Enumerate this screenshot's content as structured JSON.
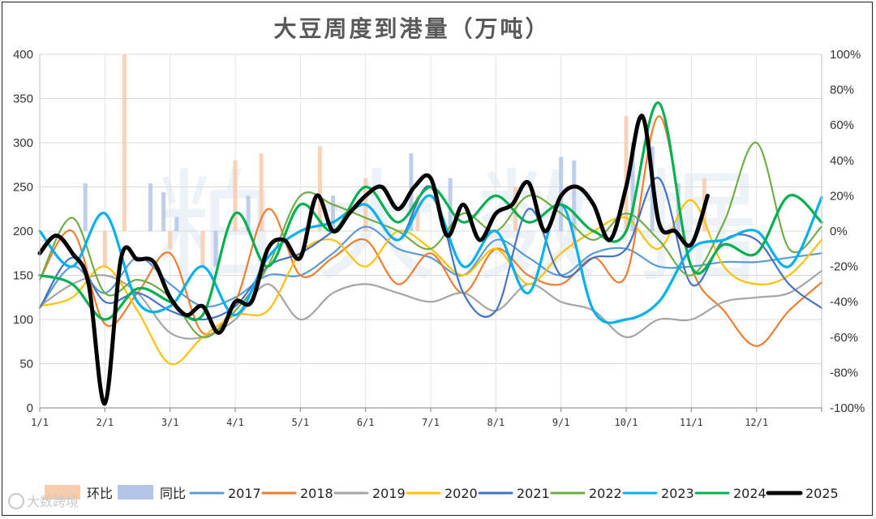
{
  "chart_data": {
    "type": "line",
    "title": "大豆周度到港量（万吨）",
    "xlabel": "",
    "ylabel": "",
    "x_categories": [
      "1/1",
      "2/1",
      "3/1",
      "4/1",
      "5/1",
      "6/1",
      "7/1",
      "8/1",
      "9/1",
      "10/1",
      "11/1",
      "12/1"
    ],
    "ylim": [
      0,
      400
    ],
    "yticks": [
      0,
      50,
      100,
      150,
      200,
      250,
      300,
      350,
      400
    ],
    "y2lim": [
      -100,
      100
    ],
    "y2ticks": [
      "-100%",
      "-80%",
      "-60%",
      "-40%",
      "-20%",
      "0%",
      "20%",
      "40%",
      "60%",
      "80%",
      "100%"
    ],
    "grid": true,
    "legend_position": "bottom",
    "colors": {
      "环比": "#f8cbad",
      "同比": "#b4c6e7",
      "2017": "#5b9bd5",
      "2018": "#ed7d31",
      "2019": "#a5a5a5",
      "2020": "#ffc000",
      "2021": "#4472c4",
      "2022": "#70ad47",
      "2023": "#00b0f0",
      "2024": "#00b050",
      "2025": "#000000"
    },
    "bars": [
      {
        "name": "环比",
        "type": "bar",
        "axis": "right",
        "x": [
          2.0,
          2.3,
          3.0,
          3.5,
          4.0,
          4.4,
          5.3,
          6.0,
          6.8,
          8.3,
          9.2,
          10.0,
          11.2
        ],
        "values": [
          -20,
          100,
          -10,
          -20,
          40,
          44,
          48,
          30,
          20,
          25,
          -10,
          65,
          30
        ]
      },
      {
        "name": "同比",
        "type": "bar",
        "axis": "right",
        "x": [
          1.7,
          2.7,
          2.9,
          3.1,
          3.7,
          4.2,
          5.5,
          6.7,
          7.3,
          9.0,
          9.2,
          10.1,
          10.4,
          10.8
        ],
        "values": [
          27,
          27,
          22,
          8,
          -20,
          20,
          20,
          44,
          30,
          42,
          40,
          50,
          48,
          27
        ]
      }
    ],
    "series": [
      {
        "name": "2017",
        "x": [
          1.0,
          1.5,
          2.0,
          2.5,
          3.0,
          3.5,
          4.0,
          4.5,
          5.0,
          5.5,
          6.0,
          6.5,
          7.0,
          7.5,
          8.0,
          8.5,
          9.0,
          9.5,
          10.0,
          10.5,
          11.0,
          11.5,
          12.0,
          12.5,
          13.0
        ],
        "values": [
          113,
          160,
          130,
          170,
          140,
          115,
          125,
          150,
          150,
          175,
          205,
          180,
          170,
          150,
          190,
          170,
          150,
          175,
          180,
          160,
          160,
          165,
          165,
          170,
          175
        ]
      },
      {
        "name": "2018",
        "x": [
          1.0,
          1.5,
          2.0,
          2.5,
          3.0,
          3.5,
          4.0,
          4.5,
          5.0,
          5.5,
          6.0,
          6.5,
          7.0,
          7.5,
          8.0,
          8.5,
          9.0,
          9.5,
          10.0,
          10.5,
          11.0,
          11.5,
          12.0,
          12.5,
          13.0
        ],
        "values": [
          145,
          200,
          95,
          130,
          175,
          85,
          120,
          225,
          150,
          170,
          190,
          140,
          175,
          130,
          180,
          150,
          140,
          170,
          150,
          330,
          160,
          110,
          70,
          110,
          142
        ]
      },
      {
        "name": "2019",
        "x": [
          1.0,
          1.5,
          2.0,
          2.5,
          3.0,
          3.5,
          4.0,
          4.5,
          5.0,
          5.5,
          6.0,
          6.5,
          7.0,
          7.5,
          8.0,
          8.5,
          9.0,
          9.5,
          10.0,
          10.5,
          11.0,
          11.5,
          12.0,
          12.5,
          13.0
        ],
        "values": [
          115,
          140,
          150,
          130,
          85,
          80,
          100,
          140,
          100,
          130,
          140,
          130,
          120,
          130,
          110,
          140,
          120,
          110,
          80,
          100,
          100,
          120,
          125,
          130,
          155
        ]
      },
      {
        "name": "2020",
        "x": [
          1.0,
          1.5,
          2.0,
          2.5,
          3.0,
          3.5,
          4.0,
          4.5,
          5.0,
          5.5,
          6.0,
          6.5,
          7.0,
          7.5,
          8.0,
          8.5,
          9.0,
          9.5,
          10.0,
          10.5,
          11.0,
          11.5,
          12.0,
          12.5,
          13.0
        ],
        "values": [
          115,
          125,
          160,
          110,
          50,
          80,
          105,
          110,
          175,
          190,
          160,
          200,
          180,
          150,
          180,
          140,
          175,
          200,
          215,
          180,
          235,
          160,
          140,
          150,
          190
        ]
      },
      {
        "name": "2021",
        "x": [
          1.0,
          1.5,
          2.0,
          2.5,
          3.0,
          3.5,
          4.0,
          4.5,
          5.0,
          5.5,
          6.0,
          6.5,
          7.0,
          7.5,
          8.0,
          8.5,
          9.0,
          9.5,
          10.0,
          10.5,
          11.0,
          11.5,
          12.0,
          12.5,
          13.0
        ],
        "values": [
          113,
          170,
          120,
          130,
          110,
          100,
          115,
          160,
          175,
          200,
          230,
          190,
          250,
          130,
          110,
          225,
          150,
          170,
          180,
          260,
          140,
          190,
          190,
          140,
          113
        ]
      },
      {
        "name": "2022",
        "x": [
          1.0,
          1.5,
          2.0,
          2.5,
          3.0,
          3.5,
          4.0,
          4.5,
          5.0,
          5.5,
          6.0,
          6.5,
          7.0,
          7.5,
          8.0,
          8.5,
          9.0,
          9.5,
          10.0,
          10.5,
          11.0,
          11.5,
          12.0,
          12.5,
          13.0
        ],
        "values": [
          145,
          215,
          130,
          145,
          125,
          80,
          110,
          160,
          240,
          230,
          215,
          200,
          180,
          220,
          200,
          240,
          220,
          190,
          220,
          190,
          150,
          210,
          300,
          180,
          205
        ]
      },
      {
        "name": "2023",
        "x": [
          1.0,
          1.5,
          2.0,
          2.5,
          3.0,
          3.5,
          4.0,
          4.5,
          5.0,
          5.5,
          6.0,
          6.5,
          7.0,
          7.5,
          8.0,
          8.5,
          9.0,
          9.5,
          10.0,
          10.5,
          11.0,
          11.5,
          12.0,
          12.5,
          13.0
        ],
        "values": [
          200,
          160,
          220,
          120,
          115,
          160,
          105,
          170,
          200,
          210,
          230,
          190,
          240,
          160,
          200,
          130,
          230,
          110,
          100,
          120,
          180,
          190,
          200,
          160,
          238
        ]
      },
      {
        "name": "2024",
        "x": [
          1.0,
          1.5,
          2.0,
          2.5,
          3.0,
          3.5,
          4.0,
          4.5,
          5.0,
          5.5,
          6.0,
          6.5,
          7.0,
          7.5,
          8.0,
          8.5,
          9.0,
          9.5,
          10.0,
          10.5,
          11.0,
          11.5,
          12.0,
          12.5,
          13.0
        ],
        "values": [
          150,
          140,
          100,
          135,
          120,
          105,
          220,
          160,
          230,
          200,
          250,
          210,
          250,
          210,
          240,
          210,
          230,
          200,
          200,
          345,
          160,
          185,
          175,
          240,
          210
        ]
      },
      {
        "name": "2025",
        "x": [
          1.0,
          1.25,
          1.5,
          1.75,
          2.0,
          2.25,
          2.5,
          2.75,
          3.0,
          3.25,
          3.5,
          3.75,
          4.0,
          4.25,
          4.5,
          4.75,
          5.0,
          5.25,
          5.5,
          5.75,
          6.0,
          6.25,
          6.5,
          6.75,
          7.0,
          7.25,
          7.5,
          7.75,
          8.0,
          8.25,
          8.5,
          8.75,
          9.0,
          9.25,
          9.5,
          9.75,
          10.0,
          10.25,
          10.5,
          10.75,
          11.0,
          11.25
        ],
        "values": [
          175,
          195,
          175,
          140,
          5,
          170,
          168,
          165,
          125,
          105,
          115,
          85,
          120,
          120,
          180,
          190,
          170,
          240,
          200,
          220,
          240,
          250,
          225,
          250,
          260,
          195,
          230,
          190,
          220,
          230,
          255,
          200,
          240,
          250,
          230,
          190,
          250,
          330,
          210,
          200,
          185,
          240
        ]
      }
    ]
  },
  "watermark": {
    "text": "粕 大 数 据"
  },
  "logo": {
    "text": "大数跨境"
  }
}
